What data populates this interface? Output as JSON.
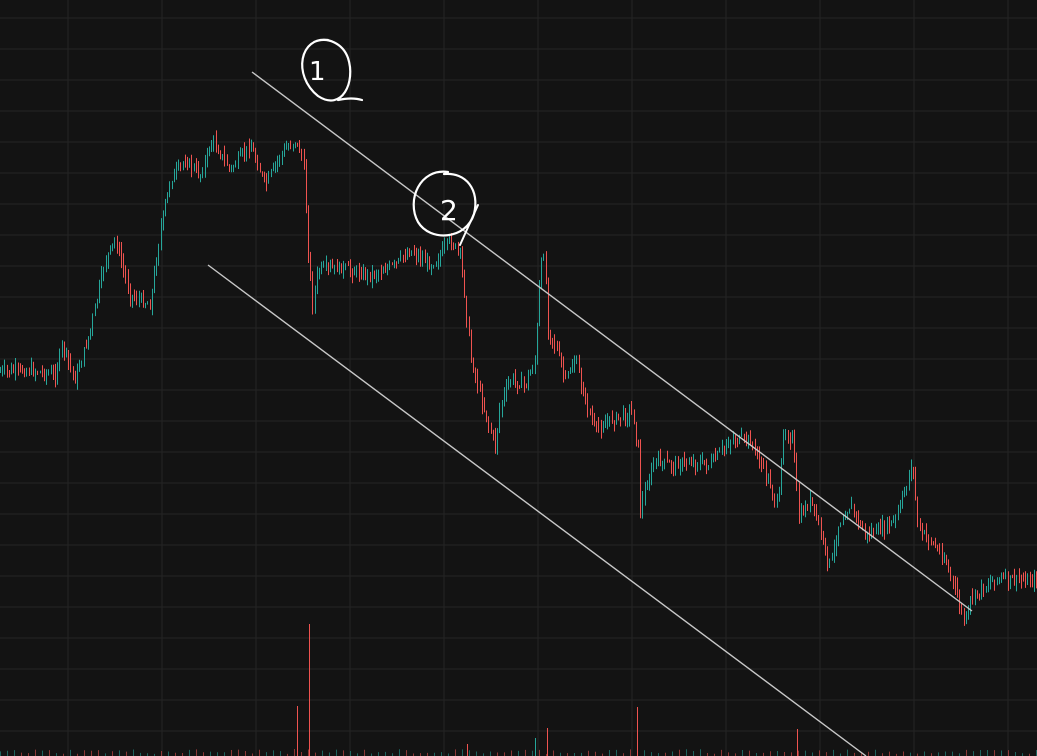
{
  "chart_data": {
    "type": "candlestick",
    "title": "",
    "xlabel": "",
    "ylabel": "",
    "grid": true,
    "colors": {
      "background": "#131313",
      "grid": "#242424",
      "up": "#26a69a",
      "down": "#ef5350",
      "trendline": "#c8c8c8",
      "annotation": "#ffffff"
    },
    "axis_ranges": {
      "x": [
        0,
        1037
      ],
      "y": [
        0,
        756
      ]
    },
    "annotations": [
      {
        "label": "1",
        "kind": "hand-drawn-circle"
      },
      {
        "label": "2",
        "kind": "hand-drawn-circle"
      }
    ],
    "anchors": [
      [
        0,
        372
      ],
      [
        30,
        370
      ],
      [
        55,
        375
      ],
      [
        62,
        345
      ],
      [
        75,
        380
      ],
      [
        90,
        330
      ],
      [
        105,
        260
      ],
      [
        115,
        240
      ],
      [
        130,
        295
      ],
      [
        150,
        305
      ],
      [
        160,
        230
      ],
      [
        170,
        180
      ],
      [
        185,
        160
      ],
      [
        200,
        175
      ],
      [
        212,
        140
      ],
      [
        230,
        170
      ],
      [
        250,
        145
      ],
      [
        265,
        185
      ],
      [
        280,
        155
      ],
      [
        295,
        140
      ],
      [
        303,
        160
      ],
      [
        308,
        250
      ],
      [
        312,
        305
      ],
      [
        318,
        270
      ],
      [
        340,
        268
      ],
      [
        370,
        275
      ],
      [
        395,
        265
      ],
      [
        410,
        250
      ],
      [
        430,
        265
      ],
      [
        440,
        255
      ],
      [
        450,
        240
      ],
      [
        460,
        255
      ],
      [
        465,
        300
      ],
      [
        470,
        355
      ],
      [
        480,
        395
      ],
      [
        490,
        430
      ],
      [
        495,
        445
      ],
      [
        500,
        405
      ],
      [
        510,
        380
      ],
      [
        525,
        385
      ],
      [
        535,
        360
      ],
      [
        540,
        270
      ],
      [
        544,
        250
      ],
      [
        548,
        330
      ],
      [
        555,
        345
      ],
      [
        565,
        380
      ],
      [
        575,
        360
      ],
      [
        585,
        400
      ],
      [
        595,
        430
      ],
      [
        610,
        420
      ],
      [
        625,
        415
      ],
      [
        632,
        410
      ],
      [
        638,
        450
      ],
      [
        640,
        510
      ],
      [
        645,
        490
      ],
      [
        655,
        460
      ],
      [
        670,
        465
      ],
      [
        690,
        462
      ],
      [
        710,
        465
      ],
      [
        730,
        440
      ],
      [
        750,
        440
      ],
      [
        770,
        485
      ],
      [
        778,
        510
      ],
      [
        783,
        430
      ],
      [
        793,
        440
      ],
      [
        798,
        520
      ],
      [
        810,
        500
      ],
      [
        820,
        530
      ],
      [
        828,
        565
      ],
      [
        833,
        555
      ],
      [
        838,
        525
      ],
      [
        850,
        505
      ],
      [
        865,
        535
      ],
      [
        880,
        530
      ],
      [
        895,
        520
      ],
      [
        905,
        490
      ],
      [
        912,
        460
      ],
      [
        918,
        530
      ],
      [
        930,
        540
      ],
      [
        945,
        560
      ],
      [
        958,
        600
      ],
      [
        965,
        625
      ],
      [
        970,
        600
      ],
      [
        980,
        590
      ],
      [
        995,
        578
      ],
      [
        1010,
        580
      ],
      [
        1037,
        580
      ]
    ],
    "volume_spikes": [
      {
        "x": 309,
        "h": 132,
        "dir": "down"
      },
      {
        "x": 297,
        "h": 50,
        "dir": "down"
      },
      {
        "x": 467,
        "h": 12,
        "dir": "down"
      },
      {
        "x": 535,
        "h": 18,
        "dir": "up"
      },
      {
        "x": 547,
        "h": 28,
        "dir": "down"
      },
      {
        "x": 637,
        "h": 49,
        "dir": "down"
      },
      {
        "x": 797,
        "h": 27,
        "dir": "down"
      }
    ]
  }
}
